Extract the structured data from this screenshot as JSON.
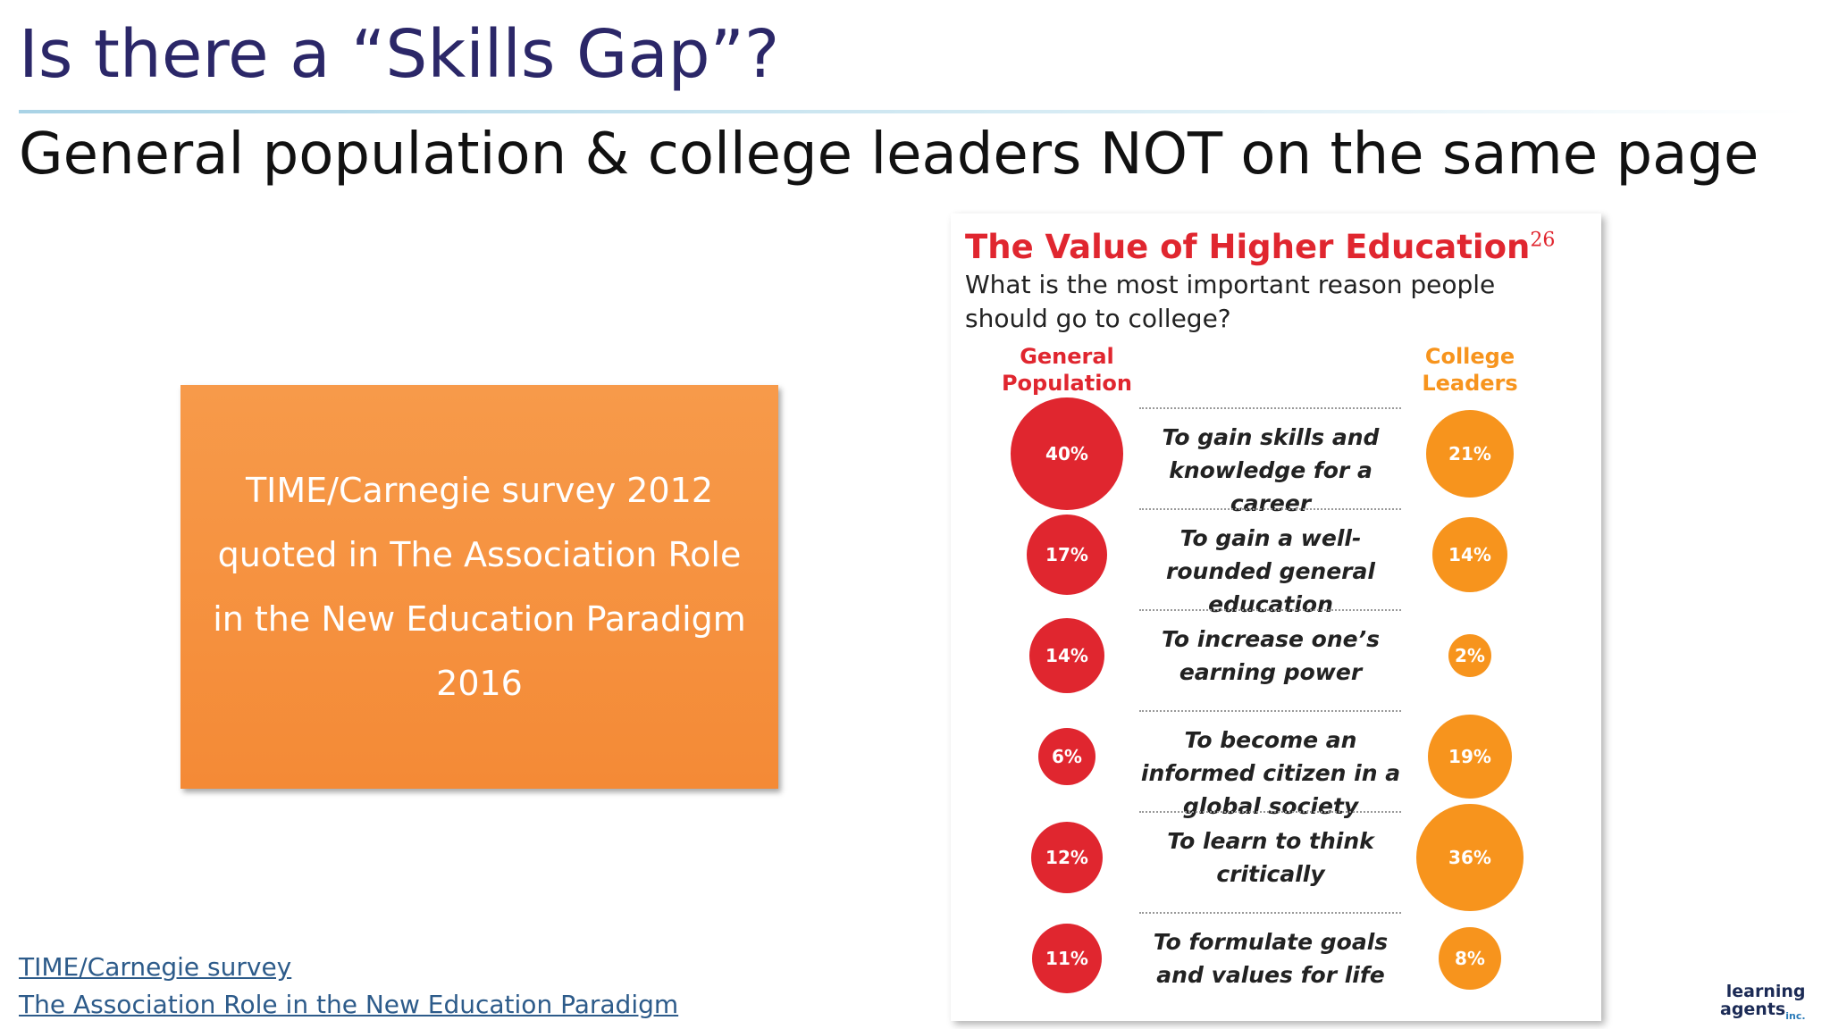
{
  "slide": {
    "title": "Is there a “Skills Gap”?",
    "subtitle": "General population & college leaders NOT on the same page",
    "box_text": "TIME/Carnegie survey 2012 quoted in The Association Role in the New Education Paradigm 2016",
    "links": [
      "TIME/Carnegie survey",
      "The Association Role in the New Education Paradigm"
    ],
    "logo": {
      "line1": "learning",
      "line2": "agents",
      "suffix": "inc."
    }
  },
  "chart_data": {
    "type": "bubble",
    "title": "The Value of Higher Education",
    "title_note": "26",
    "subtitle": "What is the most important reason people should go to college?",
    "categories": [
      "To gain skills and knowledge for a career",
      "To gain a well-rounded general education",
      "To increase one’s earning power",
      "To become an informed citizen in a global society",
      "To learn to think critically",
      "To formulate goals and values for life"
    ],
    "series": [
      {
        "name": "General Population",
        "color": "#e0262f",
        "values": [
          40,
          17,
          14,
          6,
          12,
          11
        ],
        "value_labels": [
          "40%",
          "17%",
          "14%",
          "6%",
          "12%",
          "11%"
        ]
      },
      {
        "name": "College Leaders",
        "color": "#f7941d",
        "values": [
          21,
          14,
          2,
          19,
          36,
          8
        ],
        "value_labels": [
          "21%",
          "14%",
          "2%",
          "19%",
          "36%",
          "8%"
        ]
      }
    ]
  }
}
